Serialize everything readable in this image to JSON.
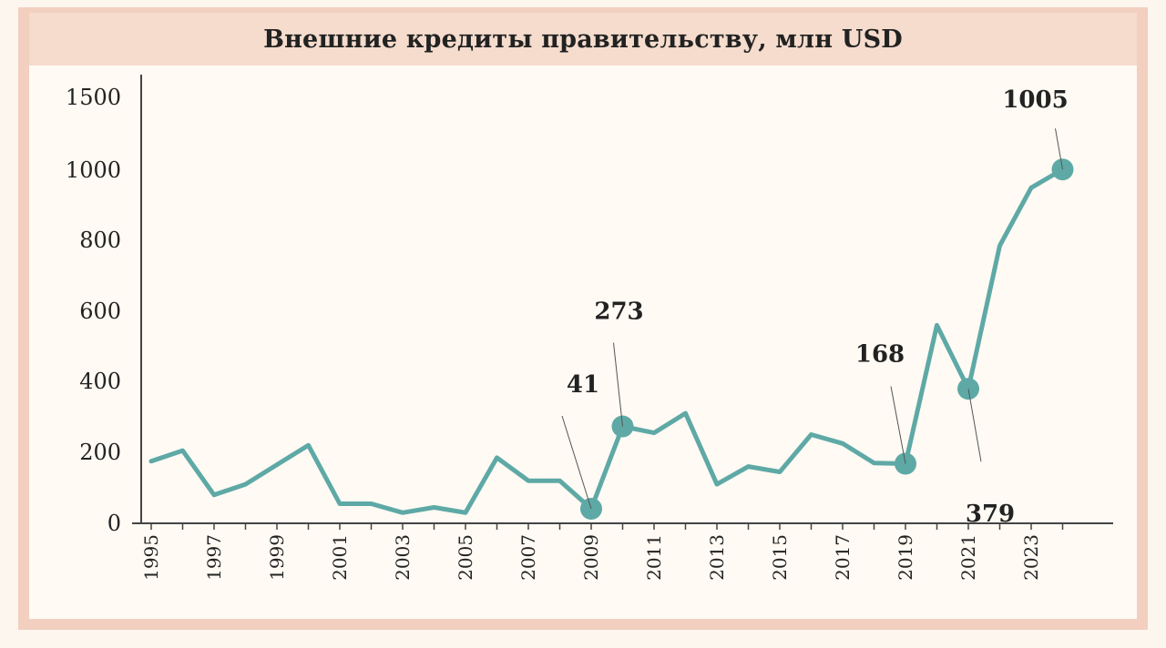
{
  "chart_data": {
    "type": "line",
    "title": "Внешние кредиты правительству, млн USD",
    "xlabel": "",
    "ylabel": "",
    "y_tick_labels": [
      "0",
      "200",
      "400",
      "600",
      "800",
      "1000",
      "1500"
    ],
    "x_tick_labels": [
      "1995",
      "1997",
      "1999",
      "2001",
      "2003",
      "2005",
      "2007",
      "2009",
      "2011",
      "2013",
      "2015",
      "2017",
      "2019",
      "2021",
      "2023"
    ],
    "y_scale": "non-linear: 0–1000 evenly spaced in steps of 200, 1000–1500 compressed to one step",
    "ylim": [
      0,
      1500
    ],
    "grid": false,
    "legend": "none",
    "color": "#5ea9a6",
    "series": [
      {
        "x": [
          1995,
          1996,
          1997,
          1998,
          1999,
          2000,
          2001,
          2002,
          2003,
          2004,
          2005,
          2006,
          2007,
          2008,
          2009,
          2010,
          2011,
          2012,
          2013,
          2014,
          2015,
          2016,
          2017,
          2018,
          2019,
          2020,
          2021,
          2022,
          2023,
          2024
        ],
        "values": [
          175,
          205,
          80,
          110,
          165,
          220,
          55,
          55,
          30,
          45,
          30,
          185,
          120,
          120,
          41,
          273,
          255,
          310,
          110,
          160,
          145,
          250,
          225,
          170,
          168,
          560,
          379,
          785,
          950,
          1005
        ]
      }
    ],
    "annotations": [
      {
        "x": 2009,
        "y": 41,
        "label": "41"
      },
      {
        "x": 2010,
        "y": 273,
        "label": "273"
      },
      {
        "x": 2019,
        "y": 168,
        "label": "168"
      },
      {
        "x": 2021,
        "y": 379,
        "label": "379"
      },
      {
        "x": 2024,
        "y": 1005,
        "label": "1005"
      }
    ]
  }
}
